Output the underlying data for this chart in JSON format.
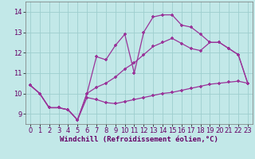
{
  "title": "",
  "xlabel": "Windchill (Refroidissement éolien,°C)",
  "ylabel": "",
  "bg_color": "#c2e8e8",
  "grid_color": "#9ecece",
  "line_color": "#993399",
  "marker": "+",
  "xlim": [
    -0.5,
    23.5
  ],
  "ylim": [
    8.5,
    14.5
  ],
  "xticks": [
    0,
    1,
    2,
    3,
    4,
    5,
    6,
    7,
    8,
    9,
    10,
    11,
    12,
    13,
    14,
    15,
    16,
    17,
    18,
    19,
    20,
    21,
    22,
    23
  ],
  "yticks": [
    9,
    10,
    11,
    12,
    13,
    14
  ],
  "line1_x": [
    0,
    1,
    2,
    3,
    4,
    5,
    6,
    7,
    8,
    9,
    10,
    11,
    12,
    13,
    14,
    15,
    16,
    17,
    18,
    19,
    20,
    21,
    22,
    23
  ],
  "line1_y": [
    10.4,
    10.0,
    9.3,
    9.3,
    9.2,
    8.7,
    10.0,
    11.8,
    11.65,
    12.35,
    12.9,
    11.0,
    13.0,
    13.75,
    13.85,
    13.85,
    13.35,
    13.25,
    12.9,
    12.5,
    12.5,
    12.2,
    11.9,
    10.5
  ],
  "line2_x": [
    0,
    1,
    2,
    3,
    4,
    5,
    6,
    7,
    8,
    9,
    10,
    11,
    12,
    13,
    14,
    15,
    16,
    17,
    18,
    19,
    20,
    21,
    22,
    23
  ],
  "line2_y": [
    10.4,
    10.0,
    9.3,
    9.3,
    9.2,
    8.7,
    9.8,
    9.7,
    9.55,
    9.5,
    9.6,
    9.7,
    9.8,
    9.9,
    10.0,
    10.05,
    10.15,
    10.25,
    10.35,
    10.45,
    10.5,
    10.55,
    10.6,
    10.5
  ],
  "line3_x": [
    0,
    1,
    2,
    3,
    4,
    5,
    6,
    7,
    8,
    9,
    10,
    11,
    12,
    13,
    14,
    15,
    16,
    17,
    18,
    19,
    20,
    21,
    22,
    23
  ],
  "line3_y": [
    10.4,
    10.0,
    9.3,
    9.3,
    9.2,
    8.7,
    10.0,
    10.3,
    10.5,
    10.8,
    11.2,
    11.5,
    11.9,
    12.3,
    12.5,
    12.7,
    12.45,
    12.2,
    12.1,
    12.5,
    12.5,
    12.2,
    11.9,
    10.5
  ],
  "tick_fontsize": 6,
  "xlabel_fontsize": 6.5,
  "tick_color": "#660066",
  "xlabel_color": "#660066"
}
